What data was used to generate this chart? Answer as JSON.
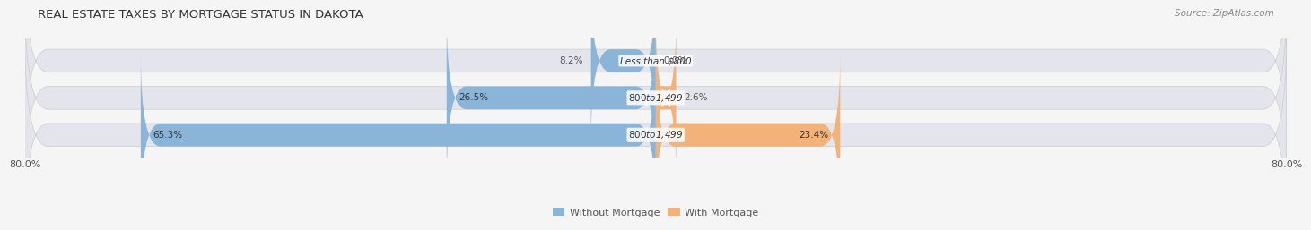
{
  "title": "REAL ESTATE TAXES BY MORTGAGE STATUS IN DAKOTA",
  "source": "Source: ZipAtlas.com",
  "rows": [
    {
      "label": "Less than $800",
      "without_mortgage": 8.2,
      "with_mortgage": 0.0
    },
    {
      "label": "$800 to $1,499",
      "without_mortgage": 26.5,
      "with_mortgage": 2.6
    },
    {
      "label": "$800 to $1,499",
      "without_mortgage": 65.3,
      "with_mortgage": 23.4
    }
  ],
  "xlim": [
    -80,
    80
  ],
  "xticklabels_left": "80.0%",
  "xticklabels_right": "80.0%",
  "color_without": "#8ab4d8",
  "color_with": "#f2b27a",
  "bar_bg_color": "#e4e4ec",
  "bar_height": 0.62,
  "title_fontsize": 9.5,
  "source_fontsize": 7.5,
  "label_fontsize": 7.5,
  "pct_fontsize": 7.5,
  "tick_fontsize": 8,
  "legend_fontsize": 8,
  "bg_color": "#f5f5f5"
}
